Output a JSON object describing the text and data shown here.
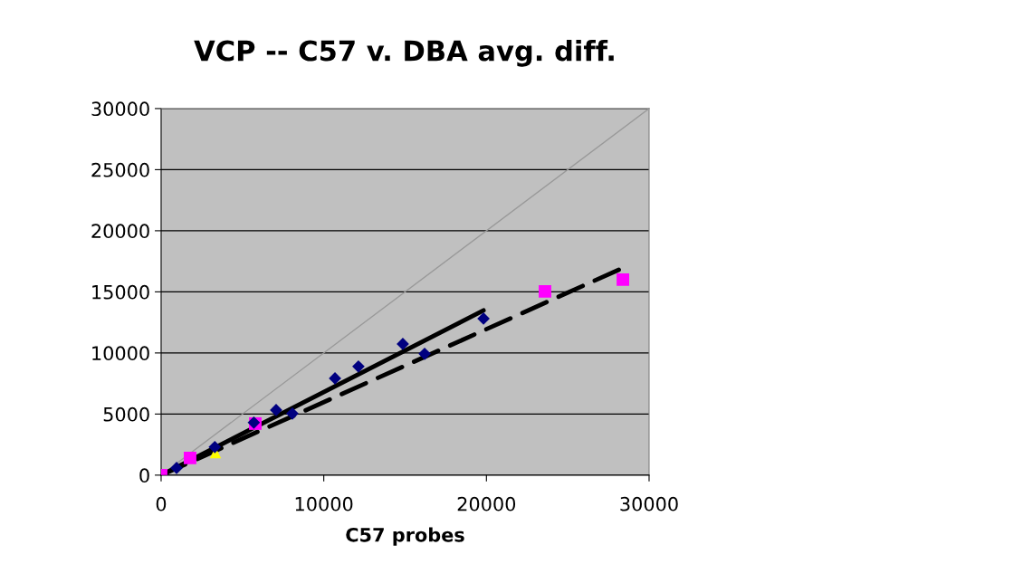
{
  "chart_data": {
    "type": "scatter",
    "title": "VCP -- C57 v. DBA avg. diff.",
    "xlabel": "C57 probes",
    "xlim": [
      0,
      30000
    ],
    "ylim": [
      0,
      30000
    ],
    "xticks": [
      0,
      10000,
      20000,
      30000
    ],
    "yticks": [
      0,
      5000,
      10000,
      15000,
      20000,
      25000,
      30000
    ],
    "grid": "y",
    "legend": false,
    "series": [
      {
        "type": "line",
        "color": "#999999",
        "marker": "none",
        "line_style": "solid",
        "x": [
          0,
          30000
        ],
        "values": [
          0,
          30000
        ]
      },
      {
        "color": "#000080",
        "marker": "diamond",
        "x": [
          950,
          3300,
          5700,
          7070,
          8070,
          10690,
          12130,
          14860,
          16200,
          19820
        ],
        "values": [
          590,
          2300,
          4300,
          5330,
          5040,
          7920,
          8890,
          10740,
          9930,
          12810
        ]
      },
      {
        "color": "#ff00ff",
        "marker": "square",
        "x": [
          0,
          1780,
          5790,
          23600,
          28390
        ],
        "values": [
          0,
          1410,
          4220,
          15040,
          16000
        ]
      },
      {
        "color": "#ffff00",
        "marker": "triangle",
        "x": [
          3340
        ],
        "values": [
          1850
        ]
      },
      {
        "type": "line",
        "color": "#000000",
        "marker": "none",
        "line_style": "solid",
        "x": [
          0,
          19820
        ],
        "values": [
          0,
          13480
        ]
      },
      {
        "type": "line",
        "color": "#000000",
        "marker": "none",
        "line_style": "dashed",
        "x": [
          0,
          28390
        ],
        "values": [
          0,
          16960
        ]
      }
    ]
  }
}
